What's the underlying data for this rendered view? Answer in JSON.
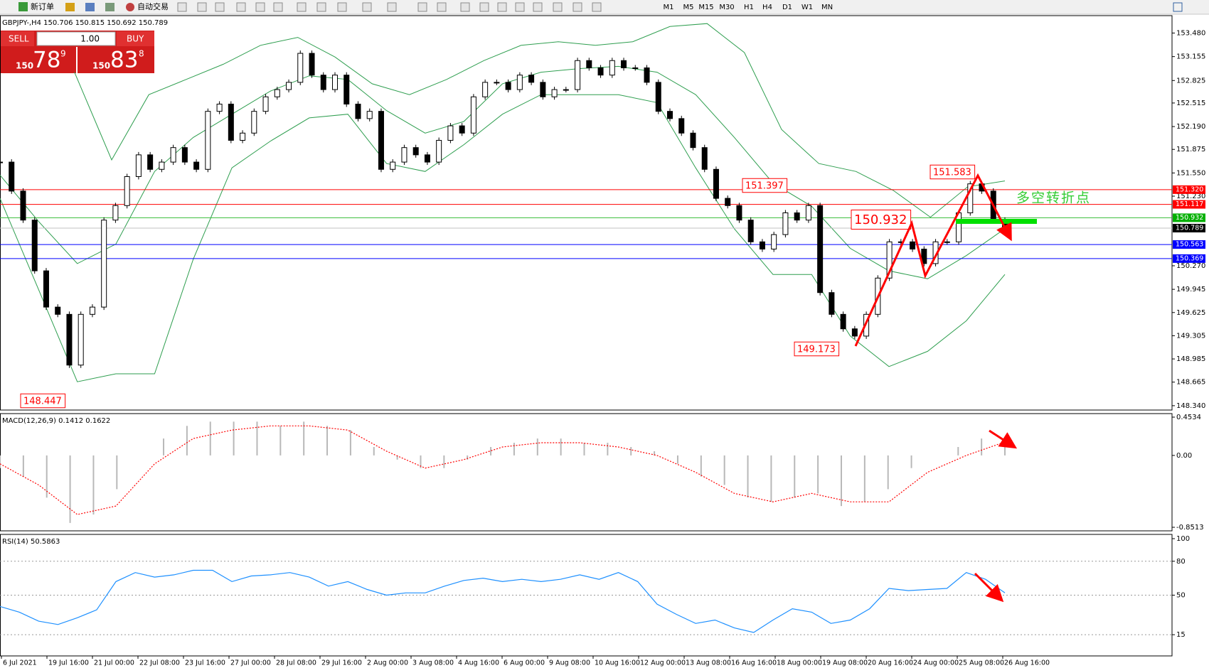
{
  "toolbar": {
    "new_order": "新订单",
    "auto_trading": "自动交易",
    "timeframes": [
      "M1",
      "M5",
      "M15",
      "M30",
      "H1",
      "H4",
      "D1",
      "W1",
      "MN"
    ]
  },
  "trade_panel": {
    "sell": "SELL",
    "buy": "BUY",
    "lot": "1.00",
    "sell_prefix": "150",
    "sell_big": "78",
    "sell_sup": "9",
    "buy_prefix": "150",
    "buy_big": "83",
    "buy_sup": "8"
  },
  "chart_data": [
    {
      "type": "candlestick",
      "title": "GBPJPY-,H4 150.706 150.815 150.692 150.789",
      "ylim": [
        148.28,
        153.72
      ],
      "yticks": [
        {
          "value": 153.48,
          "label": "153.480"
        },
        {
          "value": 153.155,
          "label": "153.155"
        },
        {
          "value": 152.825,
          "label": "152.825"
        },
        {
          "value": 152.515,
          "label": "152.515"
        },
        {
          "value": 152.19,
          "label": "152.190"
        },
        {
          "value": 151.875,
          "label": "151.875"
        },
        {
          "value": 151.55,
          "label": "151.550"
        },
        {
          "value": 151.23,
          "label": "151.230"
        },
        {
          "value": 150.27,
          "label": "150.270"
        },
        149.945,
        149.625,
        149.305,
        148.985,
        148.665,
        {
          "value": 148.34,
          "label": "148.340"
        }
      ],
      "close": [
        151.7,
        151.3,
        150.9,
        150.2,
        149.7,
        149.6,
        148.9,
        149.6,
        149.7,
        150.9,
        151.1,
        151.5,
        151.8,
        151.6,
        151.7,
        151.9,
        151.7,
        151.6,
        152.4,
        152.5,
        152.0,
        152.1,
        152.4,
        152.6,
        152.7,
        152.8,
        153.2,
        152.9,
        152.7,
        152.9,
        152.5,
        152.3,
        152.4,
        151.6,
        151.7,
        151.9,
        151.8,
        151.7,
        152.0,
        152.2,
        152.1,
        152.6,
        152.8,
        152.8,
        152.7,
        152.9,
        152.8,
        152.6,
        152.7,
        152.7,
        153.1,
        153.0,
        152.9,
        153.1,
        153.0,
        153.0,
        152.8,
        152.4,
        152.3,
        152.1,
        151.9,
        151.6,
        151.2,
        151.1,
        150.9,
        150.6,
        150.5,
        150.7,
        151.0,
        150.9,
        151.1,
        149.9,
        149.6,
        149.4,
        149.3,
        149.6,
        150.1,
        150.6,
        150.6,
        150.5,
        150.3,
        150.6,
        150.6,
        151.0,
        151.4,
        151.3,
        150.9,
        150.79
      ],
      "bands": [
        {
          "color": "#2e9e4f",
          "values": [
            null,
            null,
            152.94,
            151.73,
            152.63,
            152.84,
            153.05,
            153.31,
            153.42,
            153.15,
            152.78,
            152.63,
            152.84,
            153.1,
            153.31,
            153.36,
            153.31,
            153.36,
            153.57,
            153.61,
            153.21,
            152.15,
            151.68,
            151.57,
            151.31,
            150.94,
            151.36,
            151.44
          ]
        },
        {
          "color": "#2e9e4f",
          "values": [
            151.52,
            150.88,
            150.3,
            150.57,
            151.57,
            152.04,
            152.36,
            152.68,
            152.89,
            152.84,
            152.41,
            152.1,
            152.26,
            152.78,
            152.94,
            152.99,
            153.02,
            152.94,
            152.63,
            152.04,
            151.41,
            151.09,
            150.51,
            150.2,
            150.09,
            150.41,
            150.78
          ]
        },
        {
          "color": "#2e9e4f",
          "values": [
            151.2,
            149.94,
            148.67,
            148.78,
            148.78,
            150.36,
            151.62,
            151.99,
            152.31,
            152.36,
            151.68,
            151.57,
            151.94,
            152.36,
            152.63,
            152.63,
            152.63,
            152.52,
            151.62,
            150.78,
            150.15,
            150.15,
            149.3,
            148.88,
            149.09,
            149.51,
            150.15
          ]
        }
      ],
      "levels": [
        {
          "value": 151.32,
          "label": "151.320",
          "color": "#ff0000",
          "box_color": "#ff0000"
        },
        {
          "value": 151.117,
          "label": "151.117",
          "color": "#ff0000",
          "box_color": "#ff0000"
        },
        {
          "value": 150.932,
          "label": "150.932",
          "color": "#40c040",
          "box_color": "#00b000"
        },
        {
          "value": 150.789,
          "label": "150.789",
          "color": "#c0c0c0",
          "box_color": "#000000"
        },
        {
          "value": 150.563,
          "label": "150.563",
          "color": "#0000ff",
          "box_color": "#0000ff"
        },
        {
          "value": 150.369,
          "label": "150.369",
          "color": "#0000ff",
          "box_color": "#0000ff"
        }
      ],
      "annotations": [
        148.447,
        149.173,
        150.932,
        151.397,
        151.583
      ],
      "note": {
        "text": "多空转折点",
        "color": "#33cc33"
      },
      "time_labels": [
        "6 Jul 2021",
        "19 Jul 16:00",
        "21 Jul 00:00",
        "22 Jul 08:00",
        "23 Jul 16:00",
        "27 Jul 00:00",
        "28 Jul 08:00",
        "29 Jul 16:00",
        "2 Aug 00:00",
        "3 Aug 08:00",
        "4 Aug 16:00",
        "6 Aug 00:00",
        "9 Aug 08:00",
        "10 Aug 16:00",
        "12 Aug 00:00",
        "13 Aug 08:00",
        "16 Aug 16:00",
        "18 Aug 00:00",
        "19 Aug 08:00",
        "20 Aug 16:00",
        "24 Aug 00:00",
        "25 Aug 08:00",
        "26 Aug 16:00"
      ]
    },
    {
      "type": "macd",
      "title": "MACD(12,26,9) 0.1412 0.1622",
      "ylim": [
        -0.8513,
        0.4534
      ],
      "yticks": [
        -0.8513,
        {
          "value": 0,
          "label": "0.00"
        },
        0.4534
      ],
      "histogram": {
        "color": "#b8b8b8",
        "values": [
          -0.15,
          -0.25,
          -0.5,
          -0.8,
          -0.7,
          -0.4,
          0.0,
          0.2,
          0.35,
          0.4,
          0.4,
          0.4,
          0.35,
          0.4,
          0.35,
          0.3,
          0.1,
          -0.05,
          -0.15,
          -0.15,
          -0.05,
          0.1,
          0.15,
          0.2,
          0.2,
          0.15,
          0.15,
          0.1,
          0.05,
          -0.1,
          -0.25,
          -0.35,
          -0.5,
          -0.55,
          -0.5,
          -0.45,
          -0.6,
          -0.55,
          -0.4,
          -0.15,
          0.0,
          0.1,
          0.2,
          0.2
        ]
      },
      "signal": {
        "color": "#ff0000",
        "values": [
          -0.1,
          -0.35,
          -0.7,
          -0.6,
          -0.1,
          0.2,
          0.3,
          0.35,
          0.35,
          0.3,
          0.05,
          -0.15,
          -0.05,
          0.1,
          0.15,
          0.15,
          0.1,
          0.0,
          -0.2,
          -0.45,
          -0.55,
          -0.45,
          -0.55,
          -0.55,
          -0.2,
          0.0,
          0.16
        ]
      }
    },
    {
      "type": "rsi",
      "title": "RSI(14) 50.5863",
      "ylim": [
        0,
        100
      ],
      "yticks": [
        15,
        50,
        80,
        100
      ],
      "grid": true,
      "series": {
        "color": "#1e90ff",
        "values": [
          40,
          35,
          27,
          24,
          30,
          37,
          62,
          70,
          66,
          68,
          72,
          72,
          62,
          67,
          68,
          70,
          66,
          58,
          62,
          55,
          50,
          52,
          52,
          58,
          63,
          65,
          62,
          64,
          62,
          64,
          68,
          64,
          70,
          62,
          42,
          33,
          25,
          28,
          21,
          17,
          28,
          38,
          35,
          25,
          28,
          38,
          56,
          54,
          55,
          56,
          70,
          64,
          52
        ]
      }
    }
  ]
}
